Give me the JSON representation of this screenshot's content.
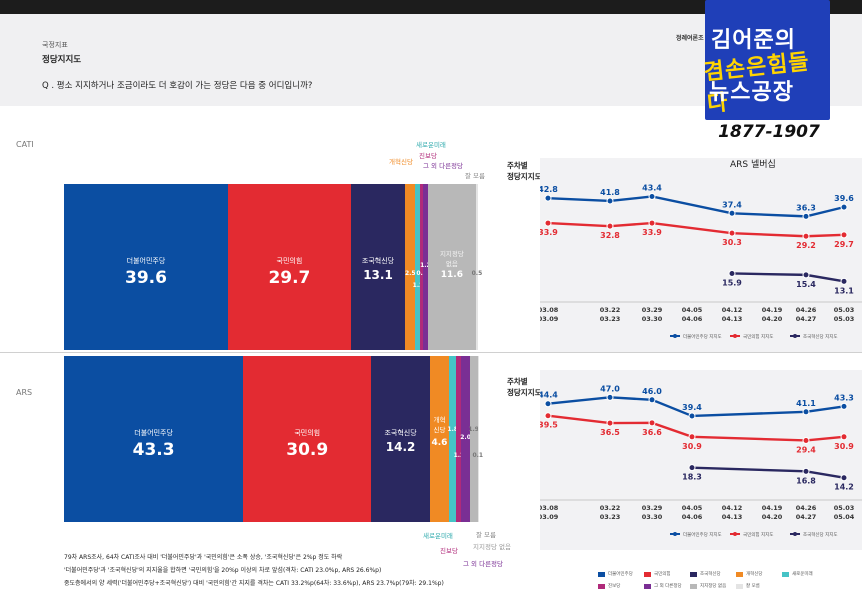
{
  "header": {
    "section": "국정지표",
    "title": "정당지지도",
    "question": "Q . 평소 지지하거나 조금이라도 더 호감이 가는 정당은 다음 중 어디입니까?",
    "source": "정례여론조"
  },
  "watermark": {
    "line1": "김어준의",
    "line2": "겸손은힘들다",
    "line3": "뉴스공장",
    "year": "1877-1907",
    "version": "ARS 넬버십"
  },
  "colors": {
    "democratic": "#0b4ea2",
    "ppp": "#e32b32",
    "rebuilding": "#2a2860",
    "reform": "#f08a24",
    "saemirae": "#46c3c6",
    "progressive": "#b02a7a",
    "other": "#7a2f94",
    "none": "#b8b8b8",
    "dontknow": "#e4e4e4"
  },
  "chart_data": [
    {
      "type": "bar",
      "title": "CATI",
      "categories": [
        "더불어민주당",
        "국민의힘",
        "조국혁신당",
        "개혁신당",
        "새로운미래",
        "진보당",
        "그 외 다른정당",
        "지지정당 없음",
        "잘 모름"
      ],
      "values": [
        39.6,
        29.7,
        13.1,
        2.5,
        1.2,
        0.6,
        1.2,
        11.6,
        0.5
      ],
      "labels": [
        "39.6",
        "29.7",
        "13.1",
        "2.5",
        "1.2",
        "0.6",
        "1.2",
        "11.6",
        "0.5"
      ]
    },
    {
      "type": "bar",
      "title": "ARS",
      "categories": [
        "더불어민주당",
        "국민의힘",
        "조국혁신당",
        "개혁신당",
        "새로운미래",
        "진보당",
        "그 외 다른정당",
        "지지정당 없음",
        "잘 모름"
      ],
      "values": [
        43.3,
        30.9,
        14.2,
        4.6,
        1.8,
        1.2,
        2.0,
        1.9,
        0.1
      ],
      "labels": [
        "43.3",
        "30.9",
        "14.2",
        "4.6",
        "1.8",
        "1.2",
        "2.0",
        "1.9",
        "0.1"
      ]
    },
    {
      "type": "line",
      "title": "주차별 정당지지도",
      "x": [
        [
          "03.08",
          "03.09"
        ],
        [
          "03.22",
          "03.23"
        ],
        [
          "03.29",
          "03.30"
        ],
        [
          "04.05",
          "04.06"
        ],
        [
          "04.12",
          "04.13"
        ],
        [
          "04.19",
          "04.20"
        ],
        [
          "04.26",
          "04.27"
        ],
        [
          "05.03",
          "05.03"
        ]
      ],
      "series": [
        {
          "name": "더불어민주당 지지도",
          "values": [
            42.8,
            41.8,
            43.4,
            null,
            37.4,
            null,
            36.3,
            39.6
          ],
          "color": "#0b4ea2"
        },
        {
          "name": "국민의힘 지지도",
          "values": [
            33.9,
            32.8,
            33.9,
            null,
            30.3,
            null,
            29.2,
            29.7
          ],
          "color": "#e32b32"
        },
        {
          "name": "조국혁신당 지지도",
          "values": [
            null,
            null,
            null,
            null,
            15.9,
            null,
            15.4,
            13.1
          ],
          "color": "#2a2860"
        }
      ]
    },
    {
      "type": "line",
      "title": "주차별 정당지지도",
      "x": [
        [
          "03.08",
          "03.09"
        ],
        [
          "03.22",
          "03.23"
        ],
        [
          "03.29",
          "03.30"
        ],
        [
          "04.05",
          "04.06"
        ],
        [
          "04.12",
          "04.13"
        ],
        [
          "04.19",
          "04.20"
        ],
        [
          "04.26",
          "04.27"
        ],
        [
          "05.03",
          "05.04"
        ]
      ],
      "series": [
        {
          "name": "더불어민주당 지지도",
          "values": [
            44.4,
            47.0,
            46.0,
            39.4,
            null,
            null,
            41.1,
            43.3
          ],
          "color": "#0b4ea2"
        },
        {
          "name": "국민의힘 지지도",
          "values": [
            39.5,
            36.5,
            36.6,
            30.9,
            null,
            null,
            29.4,
            30.9
          ],
          "color": "#e32b32"
        },
        {
          "name": "조국혁신당 지지도",
          "values": [
            null,
            null,
            null,
            18.3,
            null,
            null,
            16.8,
            14.2
          ],
          "color": "#2a2860"
        }
      ]
    }
  ],
  "party_names": {
    "democratic": "더불어민주당",
    "ppp": "국민의힘",
    "rebuilding": "조국혁신당",
    "reform": "개혁신당",
    "reform_short": "개혁\n신당",
    "saemirae": "새로운미래",
    "progressive": "진보당",
    "other": "그 외 다른정당",
    "none": "지지정당\n없음",
    "none_flat": "지지정당 없음",
    "dontknow": "잘 모름"
  },
  "rows": {
    "cati": "CATI",
    "ars": "ARS"
  },
  "weekly": {
    "title_line1": "주차별",
    "title_line2": "정당지지도"
  },
  "footnotes": [
    "79차 ARS조사, 64차 CATI조사 대비 '더불어민주당'과 '국민의힘'은 소폭 상승, '조국혁신당'은 2%p 정도 하락",
    "'더불어민주당'과 '조국혁신당'의 지지율을 합하면 '국민의힘'을 20%p 이상의 차로 앞섬(격차: CATI 23.0%p, ARS 26.6%p)",
    "중도층에서의 양 세력('더불어민주당+조국혁신당') 대비 '국민의힘'간 지지를 격차는 CATI 33.2%p(64차: 33.6%p), ARS 23.7%p(79차: 29.1%p)"
  ],
  "legend": [
    "더불어민주당",
    "국민의힘",
    "조국혁신당",
    "개혁신당",
    "새로운미래",
    "진보당",
    "그 외 다른정당",
    "지지정당 없음",
    "잘 모름"
  ]
}
